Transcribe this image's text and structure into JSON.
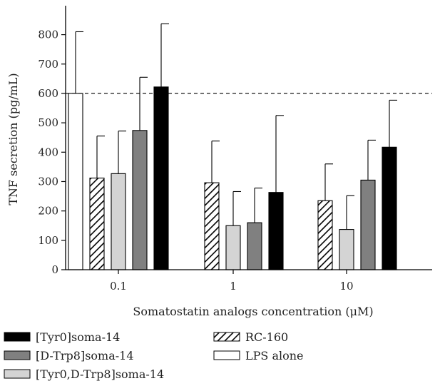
{
  "chart_data": {
    "type": "bar",
    "title": "",
    "xlabel": "Somatostatin analogs concentration (μM)",
    "ylabel": "TNF secretion (pg/mL)",
    "ylim": [
      0,
      850
    ],
    "yticks": [
      0,
      100,
      200,
      300,
      400,
      500,
      600,
      700,
      800
    ],
    "categories": [
      "0.1",
      "1",
      "10"
    ],
    "reference_line": {
      "value": 600,
      "style": "dashed"
    },
    "series": [
      {
        "name": "LPS alone",
        "fill": "#ffffff",
        "hatch": false,
        "values": [
          600,
          null,
          null
        ],
        "errors": [
          210,
          null,
          null
        ]
      },
      {
        "name": "RC-160",
        "fill": "#ffffff",
        "hatch": true,
        "values": [
          312,
          296,
          235
        ],
        "errors": [
          143,
          142,
          125
        ]
      },
      {
        "name": "[Tyr0,D-Trp8]soma-14",
        "fill": "#d4d4d4",
        "hatch": false,
        "values": [
          327,
          150,
          137
        ],
        "errors": [
          145,
          116,
          115
        ]
      },
      {
        "name": "[D-Trp8]soma-14",
        "fill": "#808080",
        "hatch": false,
        "values": [
          474,
          160,
          305
        ],
        "errors": [
          181,
          118,
          136
        ]
      },
      {
        "name": "[Tyr0]soma-14",
        "fill": "#000000",
        "hatch": false,
        "values": [
          622,
          263,
          417
        ],
        "errors": [
          215,
          262,
          160
        ]
      }
    ],
    "legend": {
      "placement": "bottom",
      "entries": [
        "[Tyr0]soma-14",
        "[D-Trp8]soma-14",
        "[Tyr0,D-Trp8]soma-14",
        "RC-160",
        "LPS alone"
      ]
    }
  }
}
